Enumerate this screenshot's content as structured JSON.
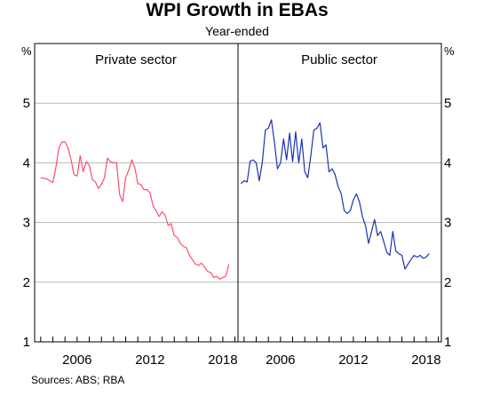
{
  "chart_data": {
    "type": "line",
    "title": "WPI Growth in EBAs",
    "subtitle": "Year-ended",
    "unit": "%",
    "ylim": [
      1,
      6
    ],
    "yticks": [
      "1",
      "2",
      "3",
      "4",
      "5"
    ],
    "xlim": [
      2002.5,
      2019.25
    ],
    "xticks": [
      2006,
      2012,
      2018
    ],
    "xtick_labels": [
      "2006",
      "2012",
      "2018"
    ],
    "grid": true,
    "source": "Sources:   ABS; RBA",
    "panels": [
      {
        "name": "Private sector",
        "color": "#ff4c6a",
        "x": [
          2003.0,
          2003.5,
          2004.0,
          2004.25,
          2004.5,
          2004.75,
          2005.0,
          2005.25,
          2005.5,
          2005.75,
          2006.0,
          2006.25,
          2006.5,
          2006.75,
          2007.0,
          2007.25,
          2007.5,
          2007.75,
          2008.0,
          2008.25,
          2008.5,
          2008.75,
          2009.0,
          2009.25,
          2009.5,
          2009.75,
          2010.0,
          2010.25,
          2010.5,
          2010.75,
          2011.0,
          2011.25,
          2011.5,
          2011.75,
          2012.0,
          2012.25,
          2012.5,
          2012.75,
          2013.0,
          2013.25,
          2013.5,
          2013.75,
          2014.0,
          2014.25,
          2014.5,
          2014.75,
          2015.0,
          2015.25,
          2015.5,
          2015.75,
          2016.0,
          2016.25,
          2016.5,
          2016.75,
          2017.0,
          2017.25,
          2017.5,
          2017.75,
          2018.0,
          2018.25,
          2018.5
        ],
        "y": [
          3.75,
          3.73,
          3.67,
          3.92,
          4.25,
          4.35,
          4.35,
          4.25,
          4.05,
          3.8,
          3.78,
          4.12,
          3.85,
          4.02,
          3.96,
          3.72,
          3.68,
          3.57,
          3.64,
          3.75,
          4.08,
          4.02,
          4.0,
          4.0,
          3.47,
          3.35,
          3.75,
          3.88,
          4.05,
          3.92,
          3.65,
          3.64,
          3.55,
          3.55,
          3.5,
          3.28,
          3.2,
          3.1,
          3.18,
          3.12,
          2.95,
          2.98,
          2.78,
          2.75,
          2.65,
          2.6,
          2.58,
          2.45,
          2.38,
          2.3,
          2.28,
          2.32,
          2.25,
          2.18,
          2.16,
          2.08,
          2.1,
          2.05,
          2.08,
          2.1,
          2.3
        ]
      },
      {
        "name": "Public sector",
        "color": "#1a33b0",
        "x": [
          2002.75,
          2003.0,
          2003.25,
          2003.5,
          2003.75,
          2004.0,
          2004.25,
          2004.5,
          2004.75,
          2005.0,
          2005.25,
          2005.5,
          2005.75,
          2006.0,
          2006.25,
          2006.5,
          2006.75,
          2007.0,
          2007.25,
          2007.5,
          2007.75,
          2008.0,
          2008.25,
          2008.5,
          2008.75,
          2009.0,
          2009.25,
          2009.5,
          2009.75,
          2010.0,
          2010.25,
          2010.5,
          2010.75,
          2011.0,
          2011.25,
          2011.5,
          2011.75,
          2012.0,
          2012.25,
          2012.5,
          2012.75,
          2013.0,
          2013.25,
          2013.5,
          2013.75,
          2014.0,
          2014.25,
          2014.5,
          2014.75,
          2015.0,
          2015.25,
          2015.5,
          2015.75,
          2016.0,
          2016.25,
          2016.5,
          2016.75,
          2017.0,
          2017.25,
          2017.5,
          2017.75,
          2018.0,
          2018.25
        ],
        "y": [
          3.65,
          3.7,
          3.68,
          4.03,
          4.05,
          4.0,
          3.7,
          4.0,
          4.55,
          4.58,
          4.72,
          4.35,
          3.9,
          4.0,
          4.4,
          4.05,
          4.5,
          4.02,
          4.52,
          4.0,
          4.4,
          3.85,
          3.75,
          4.12,
          4.55,
          4.58,
          4.67,
          4.25,
          4.3,
          3.85,
          3.9,
          3.8,
          3.6,
          3.48,
          3.2,
          3.15,
          3.2,
          3.38,
          3.48,
          3.35,
          3.1,
          2.95,
          2.65,
          2.85,
          3.05,
          2.78,
          2.85,
          2.68,
          2.5,
          2.45,
          2.85,
          2.52,
          2.48,
          2.45,
          2.22,
          2.3,
          2.38,
          2.45,
          2.42,
          2.45,
          2.4,
          2.42,
          2.48
        ]
      }
    ]
  }
}
